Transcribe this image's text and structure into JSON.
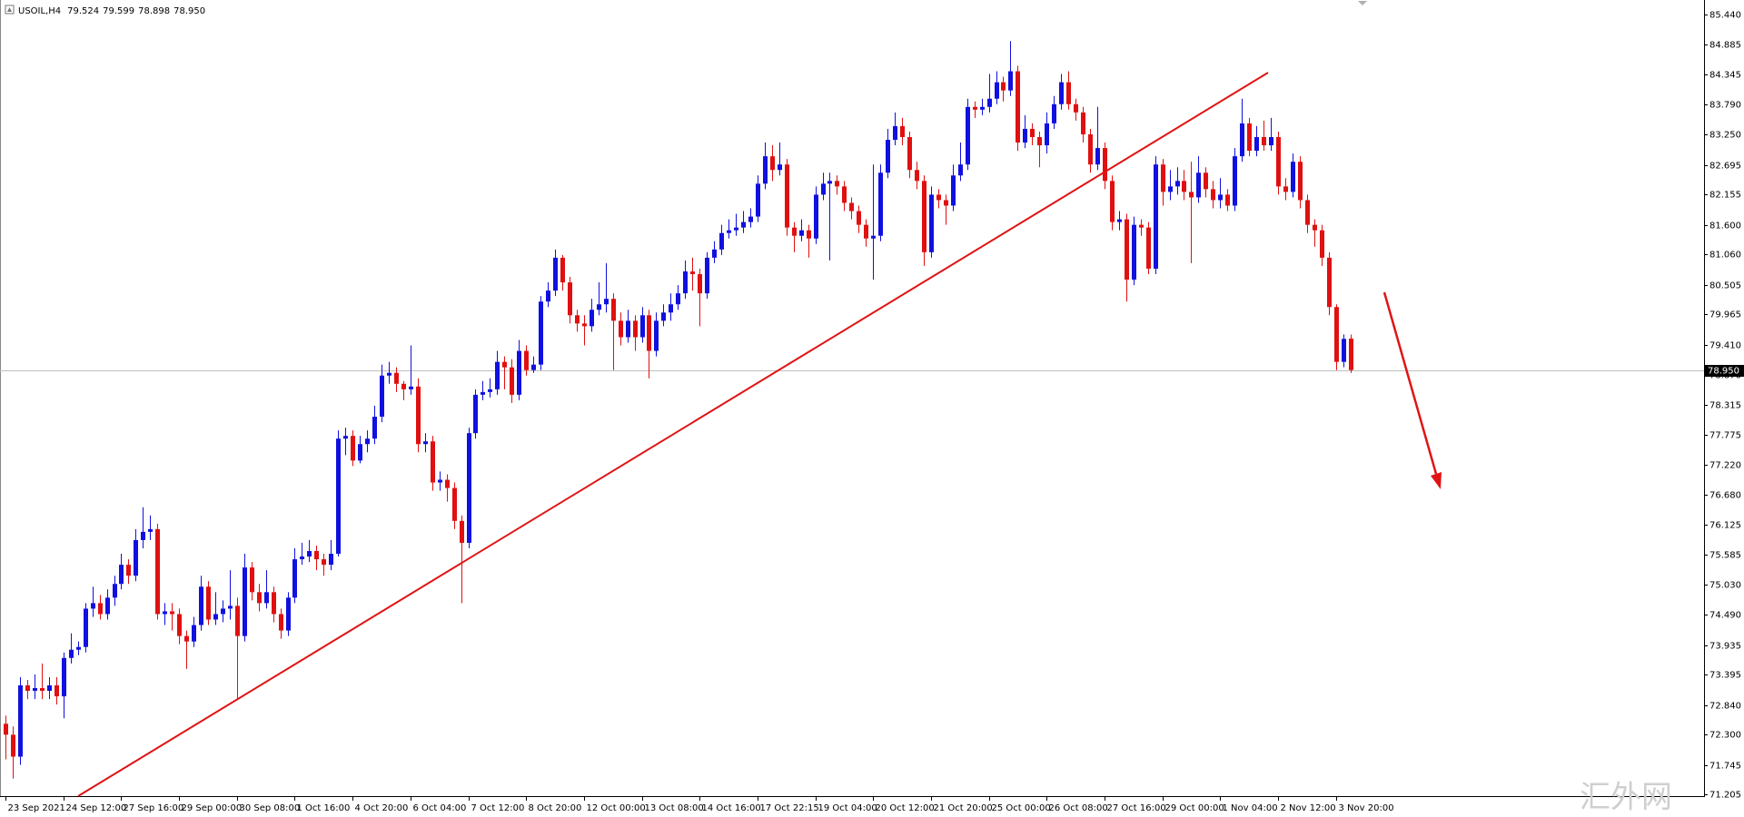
{
  "chart_data": {
    "type": "candlestick",
    "symbol": "USOIL,H4",
    "header_values": [
      79.524,
      79.599,
      78.898,
      {
        "value": 78.95,
        "label": "78.950"
      }
    ],
    "watermark": "汇外网",
    "up_color": "#1010e0",
    "down_color": "#e01010",
    "ylim": [
      71.18,
      85.7
    ],
    "yticks": [
      {
        "value": 85.44,
        "label": "85.440"
      },
      84.885,
      84.345,
      {
        "value": 83.79,
        "label": "83.790"
      },
      {
        "value": 83.25,
        "label": "83.250"
      },
      82.695,
      82.155,
      {
        "value": 81.6,
        "label": "81.600"
      },
      {
        "value": 81.06,
        "label": "81.060"
      },
      80.505,
      79.965,
      {
        "value": 79.41,
        "label": "79.410"
      },
      {
        "value": 78.87,
        "label": "78.870"
      },
      78.315,
      77.775,
      {
        "value": 77.22,
        "label": "77.220"
      },
      {
        "value": 76.68,
        "label": "76.680"
      },
      76.125,
      75.585,
      {
        "value": 75.03,
        "label": "75.030"
      },
      {
        "value": 74.49,
        "label": "74.490"
      },
      73.935,
      73.395,
      {
        "value": 72.84,
        "label": "72.840"
      },
      {
        "value": 72.3,
        "label": "72.300"
      },
      71.745,
      71.205
    ],
    "last_price": {
      "value": 78.95,
      "label": "78.950"
    },
    "xticks": [
      {
        "value": 0,
        "label": "23 Sep 2021"
      },
      {
        "value": 8,
        "label": "24 Sep 12:00"
      },
      {
        "value": 16,
        "label": "27 Sep 16:00"
      },
      {
        "value": 24,
        "label": "29 Sep 00:00"
      },
      {
        "value": 32,
        "label": "30 Sep 08:00"
      },
      {
        "value": 40,
        "label": "1 Oct 16:00"
      },
      {
        "value": 48,
        "label": "4 Oct 20:00"
      },
      {
        "value": 56,
        "label": "6 Oct 04:00"
      },
      {
        "value": 64,
        "label": "7 Oct 12:00"
      },
      {
        "value": 72,
        "label": "8 Oct 20:00"
      },
      {
        "value": 80,
        "label": "12 Oct 00:00"
      },
      {
        "value": 88,
        "label": "13 Oct 08:00"
      },
      {
        "value": 96,
        "label": "14 Oct 16:00"
      },
      {
        "value": 104,
        "label": "17 Oct 22:15"
      },
      {
        "value": 112,
        "label": "19 Oct 04:00"
      },
      {
        "value": 120,
        "label": "20 Oct 12:00"
      },
      {
        "value": 128,
        "label": "21 Oct 20:00"
      },
      {
        "value": 136,
        "label": "25 Oct 00:00"
      },
      {
        "value": 144,
        "label": "26 Oct 08:00"
      },
      {
        "value": 152,
        "label": "27 Oct 16:00"
      },
      {
        "value": 160,
        "label": "29 Oct 00:00"
      },
      {
        "value": 168,
        "label": "1 Nov 04:00"
      },
      {
        "value": 176,
        "label": "2 Nov 12:00"
      },
      {
        "value": 184,
        "label": "3 Nov 20:00"
      }
    ],
    "candles": [
      [
        72.5,
        72.65,
        71.85,
        72.3
      ],
      [
        72.3,
        72.45,
        71.5,
        71.9
      ],
      [
        71.9,
        73.35,
        71.75,
        73.2
      ],
      [
        73.2,
        73.3,
        72.95,
        73.1
      ],
      [
        73.1,
        73.4,
        72.95,
        73.15
      ],
      [
        73.15,
        73.6,
        72.95,
        73.1
      ],
      [
        73.1,
        73.35,
        72.95,
        73.2
      ],
      [
        73.2,
        73.35,
        72.85,
        73.0
      ],
      [
        73.0,
        73.8,
        72.6,
        73.7
      ],
      [
        73.7,
        74.15,
        73.6,
        73.85
      ],
      [
        73.85,
        74.0,
        73.75,
        73.9
      ],
      [
        73.9,
        74.7,
        73.8,
        74.6
      ],
      [
        74.6,
        75.0,
        74.45,
        74.7
      ],
      [
        74.7,
        74.85,
        74.4,
        74.5
      ],
      [
        74.5,
        74.95,
        74.4,
        74.8
      ],
      [
        74.8,
        75.2,
        74.65,
        75.05
      ],
      [
        75.05,
        75.6,
        74.95,
        75.4
      ],
      [
        75.4,
        75.5,
        75.05,
        75.2
      ],
      [
        75.2,
        76.05,
        75.1,
        75.85
      ],
      [
        75.85,
        76.45,
        75.7,
        76.0
      ],
      [
        76.0,
        76.3,
        75.85,
        76.05
      ],
      [
        76.05,
        76.15,
        74.4,
        74.5
      ],
      [
        74.5,
        74.7,
        74.3,
        74.55
      ],
      [
        74.55,
        74.7,
        74.2,
        74.5
      ],
      [
        74.5,
        74.6,
        73.95,
        74.1
      ],
      [
        74.1,
        74.2,
        73.5,
        74.0
      ],
      [
        74.0,
        74.45,
        73.9,
        74.3
      ],
      [
        74.3,
        75.2,
        74.2,
        75.0
      ],
      [
        75.0,
        75.1,
        74.3,
        74.4
      ],
      [
        74.4,
        74.9,
        74.3,
        74.5
      ],
      [
        74.5,
        74.75,
        74.35,
        74.6
      ],
      [
        74.6,
        75.3,
        74.4,
        74.65
      ],
      [
        74.65,
        74.8,
        72.95,
        74.1
      ],
      [
        74.1,
        75.6,
        74.0,
        75.35
      ],
      [
        75.35,
        75.45,
        74.75,
        74.9
      ],
      [
        74.9,
        75.05,
        74.55,
        74.7
      ],
      [
        74.7,
        75.3,
        74.6,
        74.9
      ],
      [
        74.9,
        75.0,
        74.35,
        74.5
      ],
      [
        74.5,
        74.6,
        74.05,
        74.2
      ],
      [
        74.2,
        74.9,
        74.1,
        74.8
      ],
      [
        74.8,
        75.7,
        74.7,
        75.5
      ],
      [
        75.5,
        75.8,
        75.4,
        75.55
      ],
      [
        75.55,
        75.85,
        75.45,
        75.65
      ],
      [
        75.65,
        75.75,
        75.3,
        75.5
      ],
      [
        75.5,
        75.6,
        75.2,
        75.4
      ],
      [
        75.4,
        75.85,
        75.3,
        75.6
      ],
      [
        75.6,
        77.85,
        75.55,
        77.7
      ],
      [
        77.7,
        77.9,
        77.4,
        77.75
      ],
      [
        77.75,
        77.85,
        77.2,
        77.3
      ],
      [
        77.3,
        77.75,
        77.25,
        77.6
      ],
      [
        77.6,
        77.85,
        77.45,
        77.7
      ],
      [
        77.7,
        78.3,
        77.6,
        78.1
      ],
      [
        78.1,
        79.05,
        78.0,
        78.85
      ],
      [
        78.85,
        79.1,
        78.7,
        78.9
      ],
      [
        78.9,
        79.0,
        78.55,
        78.7
      ],
      [
        78.7,
        78.75,
        78.4,
        78.6
      ],
      [
        78.6,
        79.4,
        78.5,
        78.65
      ],
      [
        78.65,
        78.8,
        77.45,
        77.6
      ],
      [
        77.6,
        77.8,
        77.45,
        77.65
      ],
      [
        77.65,
        77.75,
        76.75,
        76.9
      ],
      [
        76.9,
        77.1,
        76.75,
        76.95
      ],
      [
        76.95,
        77.05,
        76.55,
        76.8
      ],
      [
        76.8,
        76.9,
        76.05,
        76.2
      ],
      [
        76.2,
        76.3,
        74.7,
        75.8
      ],
      [
        75.8,
        77.9,
        75.7,
        77.8
      ],
      [
        77.8,
        78.6,
        77.7,
        78.5
      ],
      [
        78.5,
        78.75,
        78.4,
        78.55
      ],
      [
        78.55,
        78.8,
        78.45,
        78.6
      ],
      [
        78.6,
        79.3,
        78.5,
        79.1
      ],
      [
        79.1,
        79.2,
        78.6,
        79.0
      ],
      [
        79.0,
        79.15,
        78.35,
        78.5
      ],
      [
        78.5,
        79.5,
        78.4,
        79.3
      ],
      [
        79.3,
        79.4,
        78.85,
        78.95
      ],
      [
        78.95,
        79.2,
        78.9,
        79.05
      ],
      [
        79.05,
        80.3,
        78.95,
        80.2
      ],
      [
        80.2,
        80.55,
        80.1,
        80.4
      ],
      [
        80.4,
        81.15,
        80.3,
        81.0
      ],
      [
        81.0,
        81.05,
        80.4,
        80.55
      ],
      [
        80.55,
        80.65,
        79.8,
        79.95
      ],
      [
        79.95,
        80.05,
        79.65,
        79.8
      ],
      [
        79.8,
        79.95,
        79.4,
        79.75
      ],
      [
        79.75,
        80.25,
        79.65,
        80.05
      ],
      [
        80.05,
        80.55,
        79.95,
        80.15
      ],
      [
        80.15,
        80.9,
        80.0,
        80.25
      ],
      [
        80.25,
        80.35,
        78.95,
        79.85
      ],
      [
        79.85,
        80.0,
        79.4,
        79.55
      ],
      [
        79.55,
        80.05,
        79.45,
        79.85
      ],
      [
        79.85,
        79.95,
        79.3,
        79.55
      ],
      [
        79.55,
        80.1,
        79.45,
        79.95
      ],
      [
        79.95,
        80.05,
        78.8,
        79.3
      ],
      [
        79.3,
        80.0,
        79.2,
        79.85
      ],
      [
        79.85,
        80.15,
        79.75,
        80.0
      ],
      [
        80.0,
        80.35,
        79.85,
        80.15
      ],
      [
        80.15,
        80.5,
        80.05,
        80.35
      ],
      [
        80.35,
        80.95,
        80.25,
        80.75
      ],
      [
        80.75,
        81.0,
        80.4,
        80.7
      ],
      [
        80.7,
        80.8,
        79.75,
        80.35
      ],
      [
        80.35,
        81.1,
        80.25,
        81.0
      ],
      [
        81.0,
        81.3,
        80.9,
        81.15
      ],
      [
        81.15,
        81.6,
        81.05,
        81.45
      ],
      [
        81.45,
        81.7,
        81.35,
        81.5
      ],
      [
        81.5,
        81.8,
        81.4,
        81.55
      ],
      [
        81.55,
        81.85,
        81.45,
        81.65
      ],
      [
        81.65,
        81.9,
        81.55,
        81.75
      ],
      [
        81.75,
        82.5,
        81.65,
        82.35
      ],
      [
        82.35,
        83.1,
        82.25,
        82.85
      ],
      [
        82.85,
        83.05,
        82.4,
        82.6
      ],
      [
        82.6,
        83.1,
        82.5,
        82.7
      ],
      [
        82.7,
        82.8,
        81.4,
        81.55
      ],
      [
        81.55,
        81.65,
        81.1,
        81.4
      ],
      [
        81.4,
        81.7,
        81.3,
        81.5
      ],
      [
        81.5,
        81.6,
        81.0,
        81.35
      ],
      [
        81.35,
        82.3,
        81.25,
        82.15
      ],
      [
        82.15,
        82.55,
        82.05,
        82.35
      ],
      [
        82.35,
        82.55,
        80.95,
        82.4
      ],
      [
        82.4,
        82.5,
        82.15,
        82.3
      ],
      [
        82.3,
        82.4,
        81.85,
        82.0
      ],
      [
        82.0,
        82.1,
        81.7,
        81.85
      ],
      [
        81.85,
        81.95,
        81.45,
        81.6
      ],
      [
        81.6,
        81.7,
        81.2,
        81.35
      ],
      [
        81.35,
        82.7,
        80.6,
        81.4
      ],
      [
        81.4,
        82.7,
        81.3,
        82.55
      ],
      [
        82.55,
        83.35,
        82.45,
        83.15
      ],
      [
        83.15,
        83.65,
        83.05,
        83.4
      ],
      [
        83.4,
        83.55,
        83.05,
        83.2
      ],
      [
        83.2,
        83.3,
        82.45,
        82.6
      ],
      [
        82.6,
        82.75,
        82.25,
        82.4
      ],
      [
        82.4,
        82.5,
        80.85,
        81.1
      ],
      [
        81.1,
        82.3,
        81.0,
        82.15
      ],
      [
        82.15,
        82.25,
        81.9,
        82.05
      ],
      [
        82.05,
        82.15,
        81.6,
        81.95
      ],
      [
        81.95,
        82.7,
        81.85,
        82.5
      ],
      [
        82.5,
        83.1,
        82.4,
        82.7
      ],
      [
        82.7,
        83.9,
        82.6,
        83.75
      ],
      [
        83.75,
        83.85,
        83.55,
        83.7
      ],
      [
        83.7,
        83.9,
        83.6,
        83.75
      ],
      [
        83.75,
        84.35,
        83.65,
        83.9
      ],
      [
        83.9,
        84.4,
        83.8,
        84.2
      ],
      [
        84.2,
        84.3,
        83.85,
        84.05
      ],
      [
        84.05,
        84.95,
        83.95,
        84.4
      ],
      [
        84.4,
        84.5,
        82.95,
        83.1
      ],
      [
        83.1,
        83.6,
        83.0,
        83.35
      ],
      [
        83.35,
        83.45,
        83.05,
        83.2
      ],
      [
        83.2,
        83.3,
        82.65,
        83.05
      ],
      [
        83.05,
        83.65,
        82.9,
        83.45
      ],
      [
        83.45,
        83.95,
        83.35,
        83.8
      ],
      [
        83.8,
        84.35,
        83.7,
        84.2
      ],
      [
        84.2,
        84.4,
        83.7,
        83.8
      ],
      [
        83.8,
        83.9,
        83.5,
        83.65
      ],
      [
        83.65,
        83.75,
        83.1,
        83.25
      ],
      [
        83.25,
        83.35,
        82.55,
        82.7
      ],
      [
        82.7,
        83.75,
        82.6,
        83.0
      ],
      [
        83.0,
        83.1,
        82.25,
        82.4
      ],
      [
        82.4,
        82.5,
        81.5,
        81.65
      ],
      [
        81.65,
        81.85,
        81.5,
        81.7
      ],
      [
        81.7,
        81.8,
        80.2,
        80.6
      ],
      [
        80.6,
        81.75,
        80.5,
        81.6
      ],
      [
        81.6,
        81.7,
        81.4,
        81.55
      ],
      [
        81.55,
        81.65,
        80.7,
        80.8
      ],
      [
        80.8,
        82.85,
        80.7,
        82.7
      ],
      [
        82.7,
        82.8,
        81.95,
        82.2
      ],
      [
        82.2,
        82.6,
        82.05,
        82.3
      ],
      [
        82.3,
        82.65,
        82.15,
        82.4
      ],
      [
        82.4,
        82.6,
        82.05,
        82.2
      ],
      [
        82.2,
        82.75,
        80.9,
        82.1
      ],
      [
        82.1,
        82.85,
        82.0,
        82.55
      ],
      [
        82.55,
        82.65,
        82.1,
        82.25
      ],
      [
        82.25,
        82.4,
        81.9,
        82.05
      ],
      [
        82.05,
        82.45,
        81.9,
        82.15
      ],
      [
        82.15,
        82.25,
        81.85,
        81.95
      ],
      [
        81.95,
        83.0,
        81.85,
        82.85
      ],
      [
        82.85,
        83.9,
        82.75,
        83.45
      ],
      [
        83.45,
        83.55,
        82.85,
        82.95
      ],
      [
        82.95,
        83.4,
        82.85,
        83.2
      ],
      [
        83.2,
        83.5,
        82.95,
        83.05
      ],
      [
        83.05,
        83.55,
        82.95,
        83.2
      ],
      [
        83.2,
        83.3,
        82.15,
        82.3
      ],
      [
        82.3,
        82.45,
        82.05,
        82.2
      ],
      [
        82.2,
        82.9,
        82.1,
        82.75
      ],
      [
        82.75,
        82.85,
        81.9,
        82.05
      ],
      [
        82.05,
        82.15,
        81.45,
        81.6
      ],
      [
        81.6,
        81.7,
        81.2,
        81.5
      ],
      [
        81.5,
        81.6,
        80.85,
        81.0
      ],
      [
        81.0,
        81.1,
        79.95,
        80.1
      ],
      [
        80.1,
        80.15,
        78.95,
        79.1
      ],
      [
        79.1,
        79.6,
        79.0,
        79.52
      ],
      [
        79.524,
        79.599,
        78.898,
        78.95
      ]
    ]
  }
}
